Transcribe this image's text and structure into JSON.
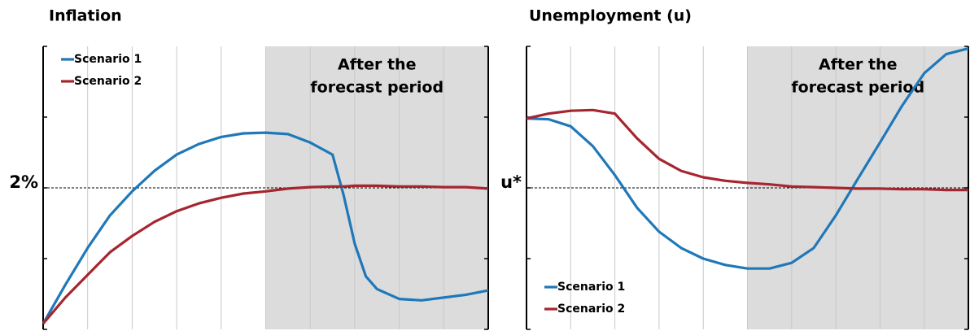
{
  "chart_data": [
    {
      "type": "line",
      "title": "Inflation",
      "annotation": [
        "After the",
        "forecast period"
      ],
      "forecast_end": 5,
      "x": [
        0,
        0.5,
        1,
        1.5,
        2,
        2.5,
        3,
        3.5,
        4,
        4.5,
        5,
        5.5,
        6,
        6.5,
        6.75,
        7,
        7.25,
        7.5,
        8,
        8.5,
        9,
        9.5,
        10
      ],
      "series": [
        {
          "name": "Scenario 1",
          "color": "#1f78b8",
          "values": [
            0.08,
            0.63,
            1.15,
            1.61,
            1.95,
            2.24,
            2.47,
            2.62,
            2.72,
            2.77,
            2.78,
            2.76,
            2.64,
            2.47,
            1.9,
            1.21,
            0.75,
            0.57,
            0.43,
            0.41,
            0.45,
            0.49,
            0.55
          ]
        },
        {
          "name": "Scenario 2",
          "color": "#a5262f",
          "values": [
            0.08,
            0.45,
            0.77,
            1.09,
            1.32,
            1.52,
            1.67,
            1.78,
            1.86,
            1.92,
            1.95,
            1.99,
            2.01,
            2.02,
            2.02,
            2.03,
            2.03,
            2.03,
            2.02,
            2.02,
            2.01,
            2.01,
            1.99
          ]
        }
      ],
      "xlim": [
        0,
        10
      ],
      "ylim": [
        0,
        4
      ],
      "yticks": [
        {
          "value": 2,
          "label": "2%"
        }
      ],
      "grid": true,
      "legend": "upper left"
    },
    {
      "type": "line",
      "title": "Unemployment (u)",
      "annotation": [
        "After the",
        "forecast period"
      ],
      "forecast_end": 5,
      "x": [
        0,
        0.5,
        1,
        1.5,
        2,
        2.5,
        3,
        3.5,
        4,
        4.5,
        5,
        5.5,
        6,
        6.5,
        7,
        7.5,
        8,
        8.5,
        9,
        9.5,
        10
      ],
      "series": [
        {
          "name": "Scenario 1",
          "color": "#1f78b8",
          "values": [
            2.98,
            2.97,
            2.87,
            2.59,
            2.18,
            1.72,
            1.38,
            1.15,
            1.0,
            0.91,
            0.86,
            0.86,
            0.94,
            1.15,
            1.61,
            2.13,
            2.64,
            3.16,
            3.62,
            3.89,
            3.97
          ]
        },
        {
          "name": "Scenario 2",
          "color": "#a5262f",
          "values": [
            2.98,
            3.05,
            3.09,
            3.1,
            3.05,
            2.7,
            2.41,
            2.24,
            2.15,
            2.1,
            2.07,
            2.05,
            2.02,
            2.01,
            2.0,
            1.99,
            1.99,
            1.98,
            1.98,
            1.97,
            1.97
          ]
        }
      ],
      "xlim": [
        0,
        10
      ],
      "ylim": [
        0,
        4
      ],
      "yticks": [
        {
          "value": 2,
          "label": "u*"
        }
      ],
      "grid": true,
      "legend": "lower left"
    }
  ]
}
